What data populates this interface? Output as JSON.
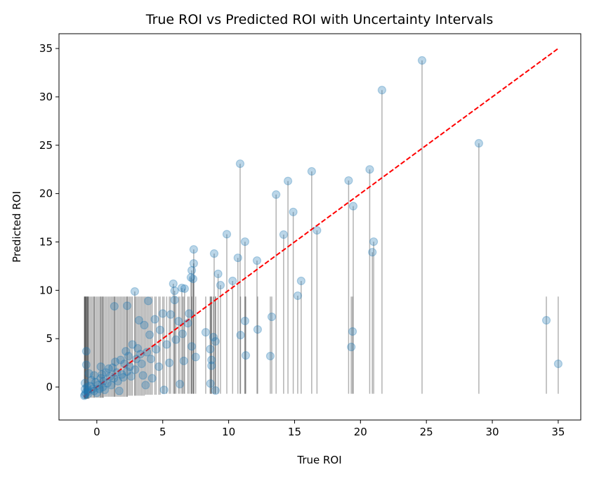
{
  "chart_data": {
    "type": "scatter",
    "title": "True ROI vs Predicted ROI with Uncertainty Intervals",
    "xlabel": "True ROI",
    "ylabel": "Predicted ROI",
    "xlim": [
      -2.87,
      36.71
    ],
    "ylim": [
      -3.41,
      36.53
    ],
    "xticks": [
      0,
      5,
      10,
      15,
      20,
      25,
      30,
      35
    ],
    "yticks": [
      0,
      5,
      10,
      15,
      20,
      25,
      30,
      35
    ],
    "grid": false,
    "colors": {
      "points": "#1f77b4",
      "intervals": "#000000",
      "reference_line": "#ff0000"
    },
    "reference_line": {
      "style": "dashed",
      "x": [
        -1,
        35
      ],
      "y": [
        -1,
        35
      ]
    },
    "point_format": [
      "true_roi",
      "predicted_roi",
      "interval_lower",
      "interval_upper"
    ],
    "points": [
      [
        24.67,
        33.77,
        -0.7,
        33.77
      ],
      [
        21.63,
        30.7,
        -0.7,
        30.7
      ],
      [
        28.98,
        25.2,
        -0.7,
        25.2
      ],
      [
        10.87,
        23.09,
        -0.7,
        23.09
      ],
      [
        16.3,
        22.3,
        -0.7,
        22.3
      ],
      [
        20.7,
        22.5,
        -0.7,
        22.5
      ],
      [
        14.5,
        21.3,
        -0.7,
        21.3
      ],
      [
        19.1,
        21.35,
        -0.7,
        21.35
      ],
      [
        13.6,
        19.9,
        -0.7,
        19.9
      ],
      [
        14.9,
        18.1,
        -0.7,
        18.1
      ],
      [
        19.45,
        18.7,
        -0.7,
        18.7
      ],
      [
        16.7,
        16.2,
        -0.7,
        16.2
      ],
      [
        9.86,
        15.8,
        -0.7,
        15.8
      ],
      [
        14.17,
        15.76,
        -0.7,
        15.76
      ],
      [
        11.24,
        15.03,
        -0.7,
        15.03
      ],
      [
        21.0,
        15.03,
        -0.7,
        15.03
      ],
      [
        20.9,
        13.94,
        -0.7,
        13.94
      ],
      [
        7.35,
        14.23,
        -0.7,
        14.23
      ],
      [
        8.9,
        13.8,
        -0.7,
        13.8
      ],
      [
        10.7,
        13.36,
        -0.7,
        13.36
      ],
      [
        12.15,
        13.07,
        -0.7,
        13.07
      ],
      [
        7.35,
        12.78,
        -0.7,
        12.78
      ],
      [
        7.2,
        12.06,
        -0.7,
        12.06
      ],
      [
        9.2,
        11.7,
        -0.7,
        11.7
      ],
      [
        7.14,
        11.33,
        -0.7,
        11.33
      ],
      [
        7.3,
        11.18,
        -0.7,
        11.18
      ],
      [
        10.3,
        10.97,
        -0.7,
        10.97
      ],
      [
        15.5,
        10.97,
        -0.7,
        10.97
      ],
      [
        9.38,
        10.53,
        -0.7,
        10.53
      ],
      [
        5.8,
        10.68,
        -0.7,
        10.68
      ],
      [
        6.45,
        10.24,
        -0.7,
        10.24
      ],
      [
        6.66,
        10.17,
        -0.7,
        10.17
      ],
      [
        5.9,
        9.95,
        -0.7,
        9.95
      ],
      [
        2.88,
        9.88,
        -0.9,
        9.88
      ],
      [
        15.24,
        9.44,
        -0.7,
        9.44
      ],
      [
        34.1,
        6.9,
        -0.7,
        9.35
      ],
      [
        13.27,
        7.26,
        -0.7,
        9.35
      ],
      [
        11.24,
        6.83,
        -0.7,
        9.35
      ],
      [
        13.16,
        3.2,
        -0.7,
        9.35
      ],
      [
        11.3,
        3.27,
        -0.7,
        9.35
      ],
      [
        10.9,
        5.37,
        -0.7,
        9.35
      ],
      [
        12.2,
        5.95,
        -0.7,
        9.35
      ],
      [
        19.4,
        5.74,
        -0.7,
        9.35
      ],
      [
        19.3,
        4.14,
        -0.7,
        9.35
      ],
      [
        35.0,
        2.4,
        -0.7,
        9.35
      ],
      [
        8.26,
        5.66,
        -0.7,
        9.35
      ],
      [
        8.84,
        5.16,
        -0.7,
        9.35
      ],
      [
        9.0,
        4.72,
        -0.7,
        9.35
      ],
      [
        8.6,
        3.92,
        -0.7,
        9.35
      ],
      [
        8.62,
        0.36,
        -0.7,
        9.35
      ],
      [
        9.0,
        -0.36,
        -0.7,
        9.35
      ],
      [
        8.7,
        2.8,
        -0.7,
        9.35
      ],
      [
        8.7,
        2.2,
        -0.7,
        9.35
      ],
      [
        1.33,
        8.35,
        -1.0,
        9.35
      ],
      [
        7.5,
        3.1,
        -0.7,
        9.35
      ],
      [
        7.2,
        4.2,
        -0.7,
        9.35
      ],
      [
        6.6,
        2.7,
        -0.7,
        9.35
      ],
      [
        6.9,
        6.6,
        -0.7,
        9.35
      ],
      [
        6.2,
        6.8,
        -0.7,
        9.35
      ],
      [
        5.6,
        7.5,
        -0.7,
        9.35
      ],
      [
        5.0,
        7.6,
        -0.7,
        9.35
      ],
      [
        4.4,
        7.0,
        -0.8,
        9.35
      ],
      [
        5.3,
        4.4,
        -0.7,
        9.35
      ],
      [
        6.0,
        4.9,
        -0.7,
        9.35
      ],
      [
        5.5,
        2.5,
        -0.7,
        9.35
      ],
      [
        4.7,
        2.1,
        -0.8,
        9.35
      ],
      [
        4.0,
        5.4,
        -0.8,
        9.35
      ],
      [
        3.6,
        6.4,
        -0.9,
        9.35
      ],
      [
        3.2,
        6.9,
        -0.9,
        9.35
      ],
      [
        3.3,
        3.4,
        -0.9,
        9.35
      ],
      [
        4.2,
        0.9,
        -0.8,
        9.35
      ],
      [
        3.7,
        0.2,
        -0.8,
        9.35
      ],
      [
        5.1,
        -0.3,
        -0.7,
        9.35
      ],
      [
        6.3,
        0.3,
        -0.7,
        9.35
      ],
      [
        2.0,
        1.0,
        -1.0,
        9.35
      ],
      [
        3.0,
        2.9,
        -0.9,
        9.35
      ],
      [
        2.7,
        4.4,
        -0.9,
        9.35
      ],
      [
        2.4,
        3.2,
        -0.9,
        9.35
      ],
      [
        2.1,
        2.4,
        -1.0,
        9.35
      ],
      [
        1.8,
        2.8,
        -1.0,
        9.35
      ],
      [
        1.5,
        1.5,
        -1.0,
        9.35
      ],
      [
        1.2,
        2.0,
        -1.0,
        9.35
      ],
      [
        1.0,
        1.1,
        -1.0,
        9.35
      ],
      [
        0.7,
        1.5,
        -1.0,
        9.35
      ],
      [
        0.5,
        0.6,
        -1.1,
        9.35
      ],
      [
        0.3,
        0.9,
        -1.1,
        9.35
      ],
      [
        0.1,
        0.2,
        -1.1,
        9.35
      ],
      [
        -0.1,
        0.5,
        -1.1,
        9.35
      ],
      [
        -0.3,
        -0.2,
        -1.1,
        9.35
      ],
      [
        -0.5,
        0.1,
        -1.1,
        9.35
      ],
      [
        -0.7,
        -0.5,
        -1.2,
        9.35
      ],
      [
        -0.9,
        -0.8,
        -1.2,
        9.35
      ],
      [
        -0.8,
        3.7,
        -1.2,
        9.35
      ],
      [
        -0.8,
        2.3,
        -1.2,
        9.35
      ],
      [
        -0.6,
        1.4,
        -1.2,
        9.35
      ],
      [
        -0.9,
        0.4,
        -1.2,
        9.35
      ],
      [
        0.3,
        2.1,
        -1.1,
        9.35
      ],
      [
        0.9,
        1.9,
        -1.0,
        9.35
      ],
      [
        1.6,
        0.6,
        -1.0,
        9.35
      ],
      [
        2.3,
        1.6,
        -1.0,
        9.35
      ],
      [
        2.9,
        1.8,
        -0.9,
        9.35
      ],
      [
        3.4,
        2.4,
        -0.9,
        9.35
      ],
      [
        3.8,
        3.6,
        -0.8,
        9.35
      ],
      [
        4.5,
        3.9,
        -0.8,
        9.35
      ],
      [
        0.0,
        -0.6,
        -1.1,
        9.35
      ],
      [
        0.6,
        -0.3,
        -1.0,
        9.35
      ],
      [
        1.1,
        0.2,
        -1.0,
        9.35
      ],
      [
        1.7,
        -0.4,
        -1.0,
        9.35
      ],
      [
        -0.2,
        1.2,
        -1.1,
        9.35
      ],
      [
        0.4,
        1.3,
        -1.1,
        9.35
      ],
      [
        1.4,
        2.6,
        -1.0,
        9.35
      ],
      [
        2.5,
        2.1,
        -0.9,
        9.35
      ],
      [
        3.1,
        4.0,
        -0.9,
        9.35
      ],
      [
        2.2,
        3.7,
        -1.0,
        9.35
      ],
      [
        1.9,
        1.3,
        -1.0,
        9.35
      ],
      [
        -0.4,
        0.7,
        -1.1,
        9.35
      ],
      [
        -0.95,
        -0.9,
        -1.2,
        9.35
      ],
      [
        -0.85,
        -0.6,
        -1.2,
        9.35
      ],
      [
        -0.75,
        0.0,
        -1.2,
        9.35
      ],
      [
        -0.65,
        -0.7,
        -1.2,
        9.35
      ],
      [
        0.2,
        -0.2,
        -1.1,
        9.35
      ],
      [
        0.8,
        0.4,
        -1.0,
        9.35
      ],
      [
        1.3,
        0.9,
        -1.0,
        9.35
      ],
      [
        2.6,
        1.1,
        -0.9,
        9.35
      ],
      [
        -0.7,
        -0.3,
        -1.2,
        9.35
      ],
      [
        -0.9,
        -0.2,
        -1.2,
        9.35
      ],
      [
        -0.2,
        -0.4,
        -1.1,
        9.35
      ],
      [
        0.45,
        0.0,
        -1.1,
        9.35
      ],
      [
        3.5,
        1.2,
        -0.9,
        9.35
      ],
      [
        4.1,
        2.9,
        -0.8,
        9.35
      ],
      [
        4.8,
        5.9,
        -0.8,
        9.35
      ],
      [
        6.5,
        5.5,
        -0.7,
        9.35
      ],
      [
        7.0,
        7.6,
        -0.7,
        9.35
      ],
      [
        5.9,
        9.0,
        -0.7,
        9.35
      ],
      [
        3.9,
        8.9,
        -0.8,
        9.35
      ],
      [
        2.3,
        8.4,
        -1.0,
        9.35
      ]
    ]
  }
}
